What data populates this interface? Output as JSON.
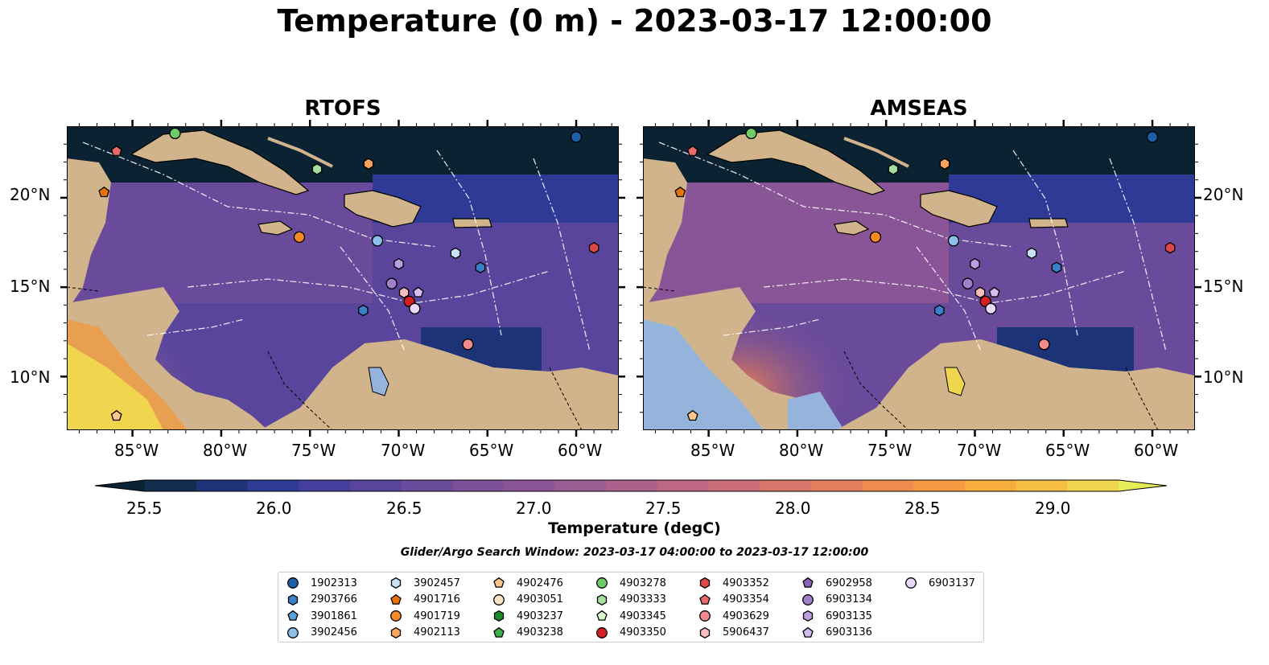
{
  "title": "Temperature (0 m) - 2023-03-17 12:00:00",
  "panels": [
    {
      "title": "RTOFS"
    },
    {
      "title": "AMSEAS"
    }
  ],
  "lon_ticks": [
    "85°W",
    "80°W",
    "75°W",
    "70°W",
    "65°W",
    "60°W"
  ],
  "lat_ticks": [
    "20°N",
    "15°N",
    "10°N"
  ],
  "colorbar": {
    "label": "Temperature (degC)",
    "ticks": [
      "25.5",
      "26.0",
      "26.5",
      "27.0",
      "27.5",
      "28.0",
      "28.5",
      "29.0"
    ],
    "colors": [
      "#0b2232",
      "#102c4e",
      "#1c3378",
      "#2e3a96",
      "#463e9c",
      "#5a459c",
      "#6a4b9b",
      "#7b5099",
      "#8a5596",
      "#9b5b93",
      "#ac608c",
      "#bd6784",
      "#cc6e78",
      "#d9766c",
      "#e47f5e",
      "#ee8b4f",
      "#f49a43",
      "#f7ac3f",
      "#f6c045",
      "#f0d64f",
      "#e6ec58"
    ]
  },
  "search_window": "Glider/Argo Search Window: 2023-03-17 04:00:00 to 2023-03-17 12:00:00",
  "legend": [
    {
      "id": "1902313",
      "shape": "circle",
      "color": "#1f5fa8"
    },
    {
      "id": "2903766",
      "shape": "hexagon",
      "color": "#3a7fc8"
    },
    {
      "id": "3901861",
      "shape": "pentagon",
      "color": "#5aa0d8"
    },
    {
      "id": "3902456",
      "shape": "circle",
      "color": "#8cc0ea"
    },
    {
      "id": "3902457",
      "shape": "hexagon",
      "color": "#c6e2f6"
    },
    {
      "id": "4901716",
      "shape": "pentagon",
      "color": "#e8720e"
    },
    {
      "id": "4901719",
      "shape": "circle",
      "color": "#f58a26"
    },
    {
      "id": "4902113",
      "shape": "hexagon",
      "color": "#fba55a"
    },
    {
      "id": "4902476",
      "shape": "pentagon",
      "color": "#fcc58c"
    },
    {
      "id": "4903051",
      "shape": "circle",
      "color": "#fde1c4"
    },
    {
      "id": "4903237",
      "shape": "hexagon",
      "color": "#1c8a2a"
    },
    {
      "id": "4903238",
      "shape": "pentagon",
      "color": "#3fb04a"
    },
    {
      "id": "4903278",
      "shape": "circle",
      "color": "#6ecb68"
    },
    {
      "id": "4903333",
      "shape": "hexagon",
      "color": "#a3e09b"
    },
    {
      "id": "4903345",
      "shape": "pentagon",
      "color": "#d6f4d0"
    },
    {
      "id": "4903350",
      "shape": "circle",
      "color": "#d42020"
    },
    {
      "id": "4903352",
      "shape": "hexagon",
      "color": "#e04848"
    },
    {
      "id": "4903354",
      "shape": "pentagon",
      "color": "#ea6a6a"
    },
    {
      "id": "4903629",
      "shape": "circle",
      "color": "#f28c8c"
    },
    {
      "id": "5906437",
      "shape": "hexagon",
      "color": "#f8bcbc"
    },
    {
      "id": "6902958",
      "shape": "pentagon",
      "color": "#8a60b8"
    },
    {
      "id": "6903134",
      "shape": "circle",
      "color": "#a280cc"
    },
    {
      "id": "6903135",
      "shape": "hexagon",
      "color": "#bb9de0"
    },
    {
      "id": "6903136",
      "shape": "pentagon",
      "color": "#d3bcf0"
    },
    {
      "id": "6903137",
      "shape": "circle",
      "color": "#ead9fa"
    }
  ],
  "markers": [
    {
      "id": "1902313",
      "lon": -60.0,
      "lat": 23.4
    },
    {
      "id": "4903278",
      "lon": -82.6,
      "lat": 23.6
    },
    {
      "id": "4903354",
      "lon": -85.9,
      "lat": 22.6
    },
    {
      "id": "4901716",
      "lon": -86.6,
      "lat": 20.3
    },
    {
      "id": "4903333",
      "lon": -74.6,
      "lat": 21.6
    },
    {
      "id": "4902113",
      "lon": -71.7,
      "lat": 21.9
    },
    {
      "id": "4901719",
      "lon": -75.6,
      "lat": 17.8
    },
    {
      "id": "3902456",
      "lon": -71.2,
      "lat": 17.6
    },
    {
      "id": "3902457",
      "lon": -66.8,
      "lat": 16.9
    },
    {
      "id": "4903352",
      "lon": -59.0,
      "lat": 17.2
    },
    {
      "id": "2903766",
      "lon": -65.4,
      "lat": 16.1
    },
    {
      "id": "6903135",
      "lon": -70.0,
      "lat": 16.3
    },
    {
      "id": "6903134",
      "lon": -70.4,
      "lat": 15.2
    },
    {
      "id": "5906437",
      "lon": -69.7,
      "lat": 14.7
    },
    {
      "id": "6903136",
      "lon": -68.9,
      "lat": 14.7
    },
    {
      "id": "4903350",
      "lon": -69.4,
      "lat": 14.2
    },
    {
      "id": "6903137",
      "lon": -69.1,
      "lat": 13.8
    },
    {
      "id": "2903766",
      "lon": -72.0,
      "lat": 13.7
    },
    {
      "id": "4903629",
      "lon": -66.1,
      "lat": 11.8
    },
    {
      "id": "4902476",
      "lon": -85.9,
      "lat": 7.8
    }
  ]
}
